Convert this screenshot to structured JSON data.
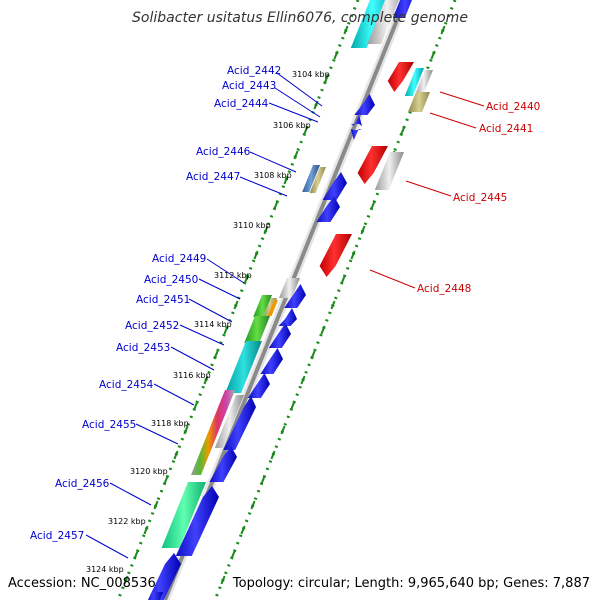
{
  "title": "Solibacter usitatus Ellin6076, complete genome",
  "accession": "Accession: NC_008536",
  "topology": "Topology: circular; Length: 9,965,640 bp; Genes: 7,887",
  "kbp_ticks": [
    "3104 kbp",
    "3106 kbp",
    "3108 kbp",
    "3110 kbp",
    "3112 kbp",
    "3114 kbp",
    "3116 kbp",
    "3118 kbp",
    "3120 kbp",
    "3122 kbp",
    "3124 kbp"
  ],
  "genes_left": [
    "Acid_2442",
    "Acid_2443",
    "Acid_2444",
    "Acid_2446",
    "Acid_2447",
    "Acid_2449",
    "Acid_2450",
    "Acid_2451",
    "Acid_2452",
    "Acid_2453",
    "Acid_2454",
    "Acid_2455",
    "Acid_2456",
    "Acid_2457"
  ],
  "genes_right": [
    "Acid_2440",
    "Acid_2441",
    "Acid_2445",
    "Acid_2448"
  ],
  "colors": {
    "forward_strand": "#0000ee",
    "reverse_strand": "#ee0000",
    "backbone": "#888888",
    "dotted_track": "#1a8a1a",
    "left_label": "#0000cc",
    "right_label": "#cc0000"
  }
}
